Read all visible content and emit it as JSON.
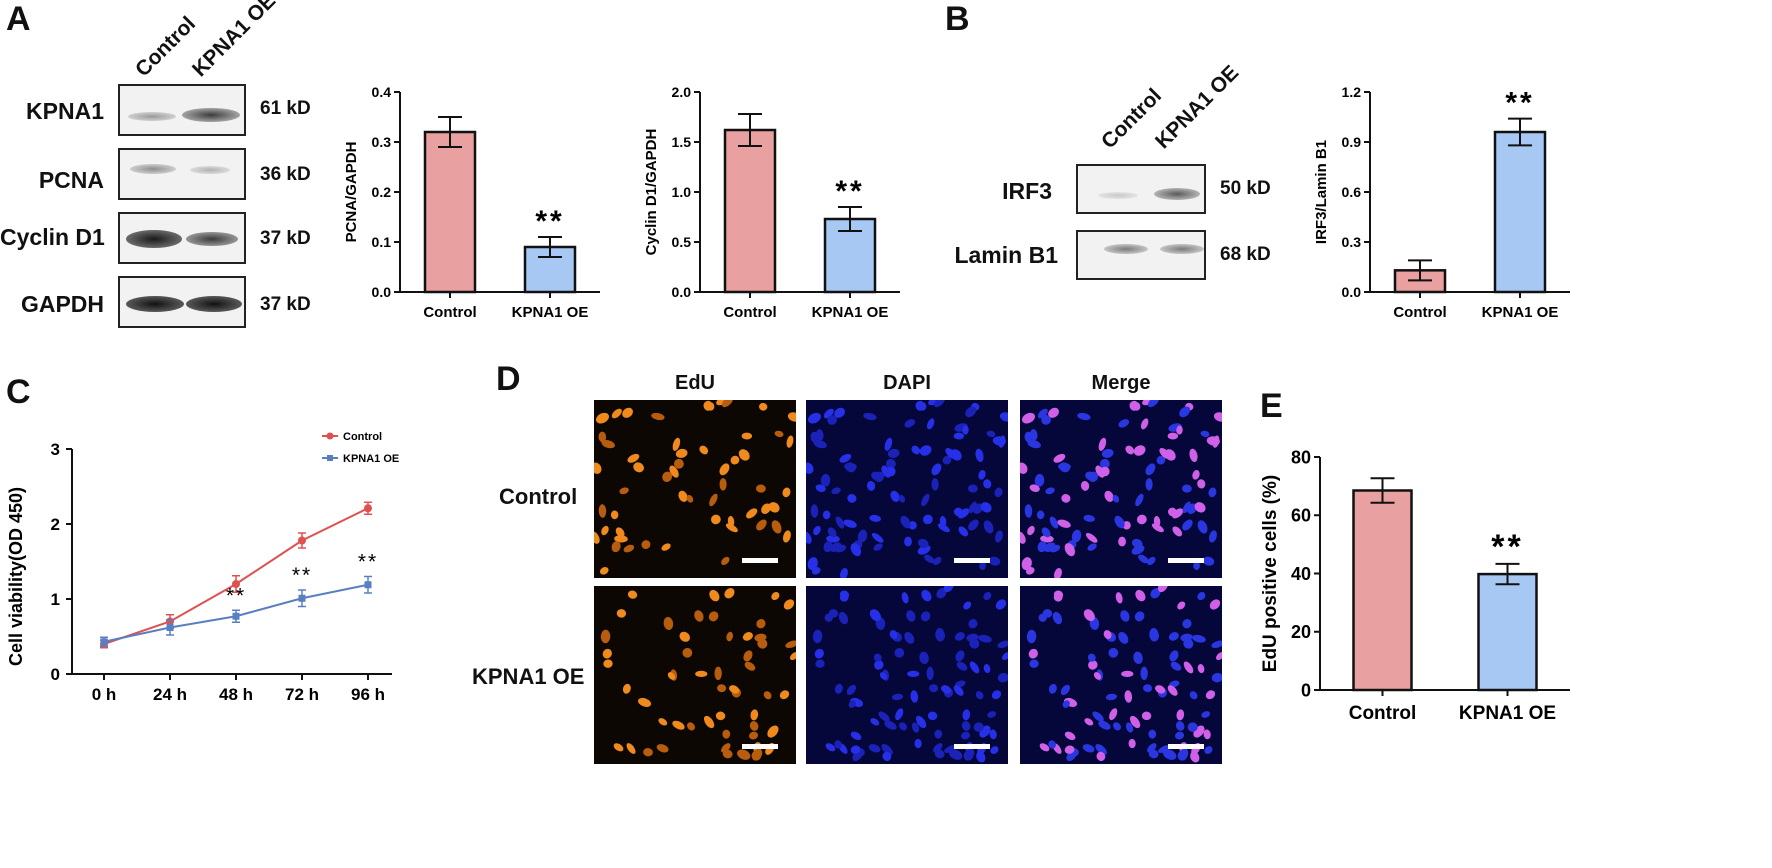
{
  "panels": {
    "A": "A",
    "B": "B",
    "C": "C",
    "D": "D",
    "E": "E"
  },
  "colors": {
    "control": "#e8a0a0",
    "kpna1": "#a8c8f4",
    "control_line": "#e05050",
    "kpna1_line": "#5a7fc0"
  },
  "blotA": {
    "lanes": [
      "Control",
      "KPNA1 OE"
    ],
    "rows": [
      {
        "label": "KPNA1",
        "kd": "61 kD"
      },
      {
        "label": "PCNA",
        "kd": "36 kD"
      },
      {
        "label": "Cyclin D1",
        "kd": "37 kD"
      },
      {
        "label": "GAPDH",
        "kd": "37 kD"
      }
    ]
  },
  "blotB": {
    "lanes": [
      "Control",
      "KPNA1 OE"
    ],
    "rows": [
      {
        "label": "IRF3",
        "kd": "50 kD"
      },
      {
        "label": "Lamin B1",
        "kd": "68 kD"
      }
    ]
  },
  "microscopy": {
    "columns": [
      "EdU",
      "DAPI",
      "Merge"
    ],
    "rows": [
      "Control",
      "KPNA1 OE"
    ]
  },
  "chart_data": [
    {
      "id": "pcna",
      "type": "bar",
      "categories": [
        "Control",
        "KPNA1 OE"
      ],
      "values": [
        0.32,
        0.09
      ],
      "errors": [
        0.03,
        0.02
      ],
      "annotations": [
        "",
        "**"
      ],
      "ylabel": "PCNA/GAPDH",
      "ylim": [
        0,
        0.4
      ],
      "yticks": [
        "0.0",
        "0.1",
        "0.2",
        "0.3",
        "0.4"
      ]
    },
    {
      "id": "cyclin",
      "type": "bar",
      "categories": [
        "Control",
        "KPNA1 OE"
      ],
      "values": [
        1.62,
        0.73
      ],
      "errors": [
        0.16,
        0.12
      ],
      "annotations": [
        "",
        "**"
      ],
      "ylabel": "Cyclin D1/GAPDH",
      "ylim": [
        0,
        2.0
      ],
      "yticks": [
        "0.0",
        "0.5",
        "1.0",
        "1.5",
        "2.0"
      ]
    },
    {
      "id": "irf3",
      "type": "bar",
      "categories": [
        "Control",
        "KPNA1 OE"
      ],
      "values": [
        0.13,
        0.96
      ],
      "errors": [
        0.06,
        0.08
      ],
      "annotations": [
        "",
        "**"
      ],
      "ylabel": "IRF3/Lamin B1",
      "ylim": [
        0,
        1.2
      ],
      "yticks": [
        "0.0",
        "0.3",
        "0.6",
        "0.9",
        "1.2"
      ]
    },
    {
      "id": "viability",
      "type": "line",
      "x": [
        "0 h",
        "24 h",
        "48 h",
        "72 h",
        "96 h"
      ],
      "series": [
        {
          "name": "Control",
          "values": [
            0.4,
            0.7,
            1.2,
            1.78,
            2.21
          ],
          "errors": [
            0.05,
            0.09,
            0.11,
            0.1,
            0.08
          ]
        },
        {
          "name": "KPNA1 OE",
          "values": [
            0.43,
            0.62,
            0.77,
            1.01,
            1.19
          ],
          "errors": [
            0.06,
            0.1,
            0.08,
            0.11,
            0.11
          ]
        }
      ],
      "annotations": [
        "",
        "",
        "**",
        "**",
        "**"
      ],
      "ylabel": "Cell viability(OD 450)",
      "ylim": [
        0,
        3
      ],
      "yticks": [
        "0",
        "1",
        "2",
        "3"
      ],
      "legend": "top-right"
    },
    {
      "id": "edu",
      "type": "bar",
      "categories": [
        "Control",
        "KPNA1 OE"
      ],
      "values": [
        68.5,
        39.8
      ],
      "errors": [
        4.2,
        3.5
      ],
      "annotations": [
        "",
        "**"
      ],
      "ylabel": "EdU positive cells (%)",
      "ylim": [
        0,
        80
      ],
      "yticks": [
        "0",
        "20",
        "40",
        "60",
        "80"
      ]
    }
  ]
}
